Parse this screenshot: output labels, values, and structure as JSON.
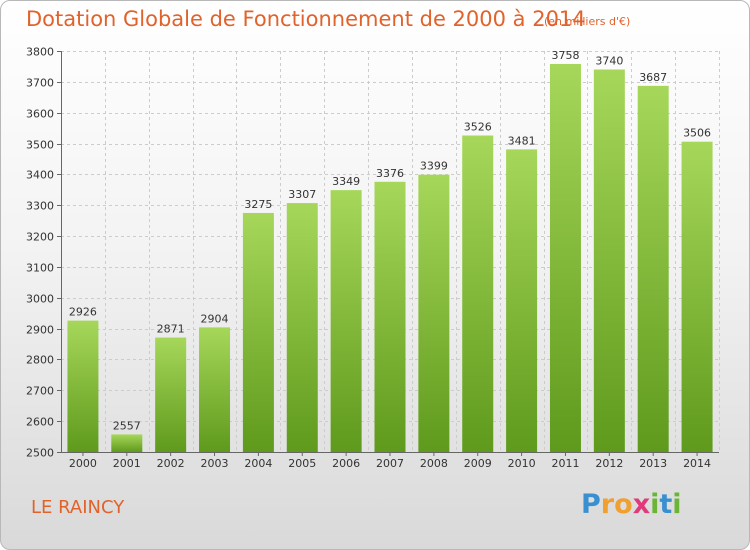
{
  "title": "Dotation Globale de Fonctionnement de 2000 à 2014",
  "subtitle": "(en milliers d'€)",
  "place": "LE RAINCY",
  "logo": {
    "text": "Proxiti",
    "letters": [
      {
        "ch": "P",
        "color": "#3a8fd0"
      },
      {
        "ch": "r",
        "color": "#f0a030"
      },
      {
        "ch": "o",
        "color": "#f0a030"
      },
      {
        "ch": "x",
        "color": "#e03a7a"
      },
      {
        "ch": "i",
        "color": "#6ab535"
      },
      {
        "ch": "t",
        "color": "#3a8fd0"
      },
      {
        "ch": "i",
        "color": "#6ab535"
      }
    ]
  },
  "colors": {
    "accent": "#e2622b",
    "bar_top": "#a6d75a",
    "bar_bottom": "#5f9a1c",
    "grid": "#cccccc",
    "axis": "#666666"
  },
  "chart_data": {
    "type": "bar",
    "categories": [
      "2000",
      "2001",
      "2002",
      "2003",
      "2004",
      "2005",
      "2006",
      "2007",
      "2008",
      "2009",
      "2010",
      "2011",
      "2012",
      "2013",
      "2014"
    ],
    "values": [
      2926,
      2557,
      2871,
      2904,
      3275,
      3307,
      3349,
      3376,
      3399,
      3526,
      3481,
      3758,
      3740,
      3687,
      3506
    ],
    "ylim": [
      2500,
      3800
    ],
    "yticks": [
      2500,
      2600,
      2700,
      2800,
      2900,
      3000,
      3100,
      3200,
      3300,
      3400,
      3500,
      3600,
      3700,
      3800
    ],
    "grid": true,
    "data_labels": true
  }
}
